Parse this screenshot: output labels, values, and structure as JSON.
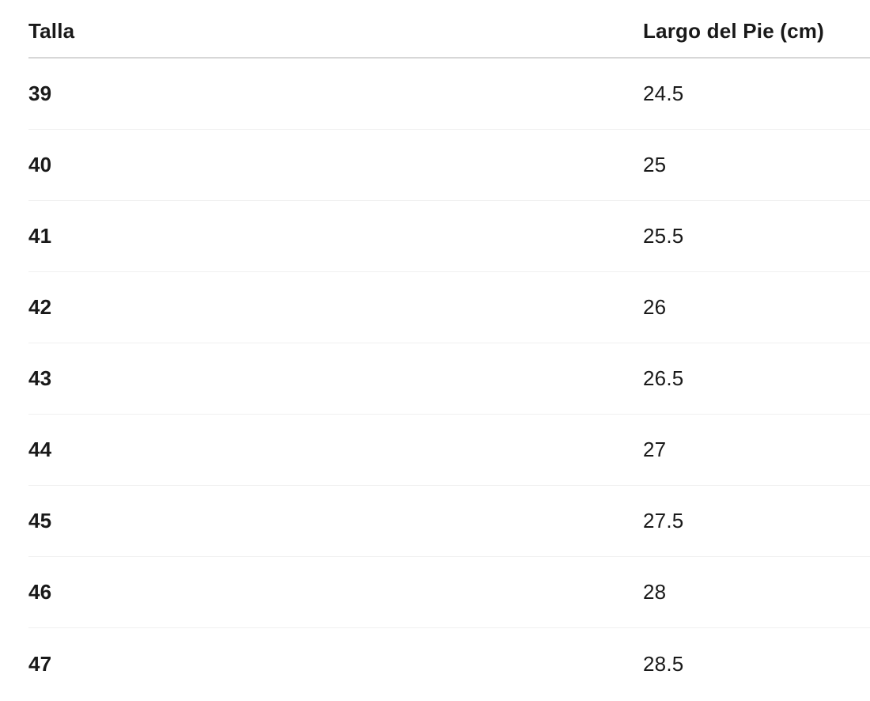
{
  "table": {
    "header": {
      "size_label": "Talla",
      "length_label": "Largo del Pie (cm)"
    },
    "rows": [
      {
        "size": "39",
        "length": "24.5"
      },
      {
        "size": "40",
        "length": "25"
      },
      {
        "size": "41",
        "length": "25.5"
      },
      {
        "size": "42",
        "length": "26"
      },
      {
        "size": "43",
        "length": "26.5"
      },
      {
        "size": "44",
        "length": "27"
      },
      {
        "size": "45",
        "length": "27.5"
      },
      {
        "size": "46",
        "length": "28"
      },
      {
        "size": "47",
        "length": "28.5"
      }
    ]
  },
  "colors": {
    "background": "#ffffff",
    "text": "#191919",
    "header_divider": "#d7d7d7",
    "row_divider": "#f0f0f0"
  }
}
